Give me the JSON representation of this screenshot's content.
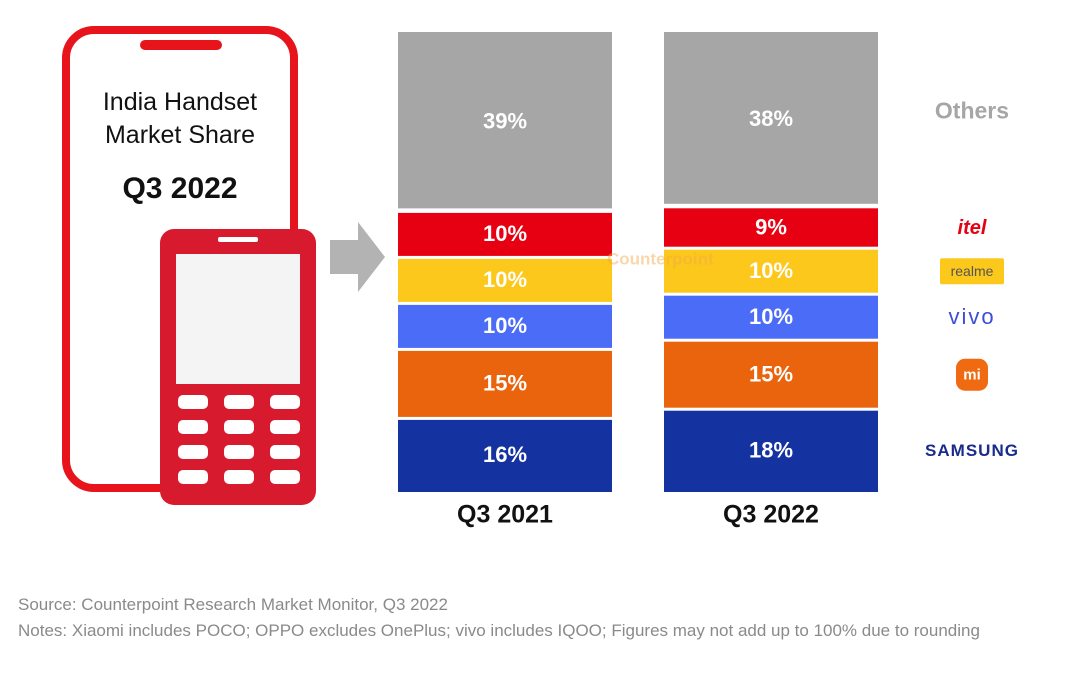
{
  "chart_data": {
    "type": "stacked-bar",
    "title": "India Handset Market Share",
    "subtitle": "Q3 2022",
    "categories": [
      "Q3 2021",
      "Q3 2022"
    ],
    "series": [
      {
        "name": "SAMSUNG",
        "color": "#1432a0",
        "values": [
          16,
          18
        ],
        "value_labels": [
          "16%",
          "18%"
        ]
      },
      {
        "name": "mi",
        "color": "#e9640d",
        "values": [
          15,
          15
        ],
        "value_labels": [
          "15%",
          "15%"
        ]
      },
      {
        "name": "vivo",
        "color": "#4a6cf7",
        "values": [
          10,
          10
        ],
        "value_labels": [
          "10%",
          "10%"
        ]
      },
      {
        "name": "realme",
        "color": "#fbc81b",
        "values": [
          10,
          10
        ],
        "value_labels": [
          "10%",
          "10%"
        ]
      },
      {
        "name": "itel",
        "color": "#e60012",
        "values": [
          10,
          9
        ],
        "value_labels": [
          "10%",
          "9%"
        ]
      },
      {
        "name": "Others",
        "color": "#a6a6a6",
        "values": [
          39,
          38
        ],
        "value_labels": [
          "39%",
          "38%"
        ]
      }
    ],
    "watermark": "Counterpoint",
    "source": "Source: Counterpoint Research Market Monitor, Q3 2022",
    "notes": "Notes: Xiaomi includes POCO; OPPO excludes OnePlus; vivo includes IQOO; Figures may not add up to 100% due to rounding"
  }
}
